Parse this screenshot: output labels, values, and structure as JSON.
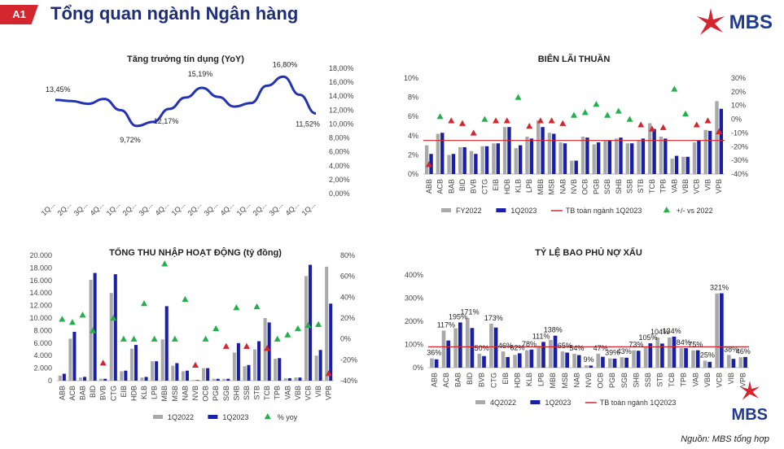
{
  "header": {
    "badge": "A1",
    "title": "Tổng quan ngành Ngân hàng",
    "brand": "MBS"
  },
  "source": "Nguồn: MBS tổng hợp",
  "colors": {
    "navy": "#1a1fa8",
    "gray": "#a9a9a9",
    "red": "#d3262e",
    "green": "#22b04b",
    "line": "#2233b5"
  },
  "chart_data": [
    {
      "type": "line",
      "title": "Tăng trưởng tín dụng (YoY)",
      "x": [
        "1Q...",
        "2Q...",
        "3Q...",
        "4Q...",
        "1Q...",
        "2Q...",
        "3Q...",
        "4Q...",
        "1Q...",
        "2Q...",
        "3Q...",
        "4Q...",
        "1Q...",
        "2Q...",
        "3Q...",
        "4Q...",
        "1Q..."
      ],
      "values": [
        13.45,
        13.3,
        12.9,
        13.6,
        12.0,
        9.72,
        10.3,
        12.17,
        13.8,
        15.19,
        13.9,
        12.5,
        13.0,
        15.5,
        16.8,
        14.2,
        11.52
      ],
      "point_labels": {
        "0": "13,45%",
        "5": "9,72%",
        "7": "12,17%",
        "9": "15,19%",
        "14": "16,80%",
        "16": "11,52%"
      },
      "yticks": [
        "0,00%",
        "2,00%",
        "4,00%",
        "6,00%",
        "8,00%",
        "10,00%",
        "12,00%",
        "14,00%",
        "16,00%",
        "18,00%"
      ],
      "ylim": [
        0,
        18
      ]
    },
    {
      "type": "bar",
      "title": "BIÊN LÃI THUẦN",
      "categories": [
        "ABB",
        "ACB",
        "BAB",
        "BID",
        "BVB",
        "CTG",
        "EIB",
        "HDB",
        "KLB",
        "LPB",
        "MBB",
        "MSB",
        "NAB",
        "NVB",
        "OCB",
        "PGB",
        "SGB",
        "SHB",
        "SSB",
        "STB",
        "TCB",
        "TPB",
        "VAB",
        "VBB",
        "VCB",
        "VIB",
        "VPB"
      ],
      "series": [
        {
          "name": "FY2022",
          "values": [
            3.0,
            4.2,
            2.0,
            2.8,
            2.4,
            2.9,
            3.2,
            4.9,
            2.7,
            3.9,
            5.6,
            4.3,
            3.3,
            1.4,
            3.9,
            3.1,
            3.5,
            3.7,
            3.2,
            3.5,
            5.3,
            3.9,
            1.6,
            1.8,
            3.3,
            4.6,
            7.6
          ]
        },
        {
          "name": "1Q2023",
          "values": [
            2.1,
            4.3,
            2.1,
            2.8,
            2.1,
            2.9,
            3.2,
            4.9,
            3.0,
            3.7,
            4.9,
            4.2,
            3.2,
            1.4,
            3.8,
            3.3,
            3.5,
            3.8,
            3.2,
            3.7,
            4.7,
            3.7,
            1.9,
            1.8,
            3.5,
            4.5,
            6.8
          ]
        },
        {
          "name": "+/- vs 2022",
          "values": [
            -33,
            2,
            -1,
            -3,
            -10,
            0,
            -1,
            -1,
            16,
            -5,
            -1,
            -1,
            -3,
            3,
            5,
            11,
            3,
            6,
            0,
            -4,
            -7,
            -6,
            22,
            4,
            -4,
            -1,
            -9
          ]
        }
      ],
      "avg_line": {
        "name": "TB toàn ngành 1Q2023",
        "value": 3.5
      },
      "yticks_left": [
        "0%",
        "2%",
        "4%",
        "6%",
        "8%",
        "10%"
      ],
      "yticks_right": [
        "-40%",
        "-30%",
        "-20%",
        "-10%",
        "0%",
        "10%",
        "20%",
        "30%"
      ],
      "ylim": [
        0,
        10
      ],
      "y2lim": [
        -40,
        30
      ]
    },
    {
      "type": "bar",
      "title": "TỔNG THU NHẬP HOẠT ĐỘNG (tỷ đồng)",
      "categories": [
        "ABB",
        "ACB",
        "BAB",
        "BID",
        "BVB",
        "CTG",
        "EIB",
        "HDB",
        "KLB",
        "LPB",
        "MBB",
        "MSB",
        "NAB",
        "NVB",
        "OCB",
        "PGB",
        "SGB",
        "SHB",
        "SSB",
        "STB",
        "TCB",
        "TPB",
        "VAB",
        "VBB",
        "VCB",
        "VIB",
        "VPB"
      ],
      "series": [
        {
          "name": "1Q2022",
          "values": [
            800,
            6700,
            500,
            16100,
            300,
            14000,
            1500,
            5100,
            500,
            3100,
            6600,
            2400,
            1500,
            100,
            2000,
            300,
            300,
            4500,
            2300,
            5000,
            10000,
            3500,
            400,
            500,
            16700,
            4000,
            18200
          ]
        },
        {
          "name": "1Q2023",
          "values": [
            1100,
            7800,
            600,
            17200,
            300,
            17000,
            1600,
            5700,
            600,
            3100,
            11900,
            2800,
            1600,
            100,
            2000,
            300,
            300,
            6000,
            2500,
            6300,
            9300,
            3600,
            400,
            500,
            18500,
            4900,
            12300
          ]
        },
        {
          "name": "% yoy",
          "values": [
            19,
            16,
            23,
            8,
            -23,
            20,
            0,
            0,
            34,
            0,
            72,
            0,
            38,
            -25,
            0,
            10,
            -7,
            30,
            -7,
            31,
            -9,
            0,
            4,
            10,
            13,
            14,
            -33
          ]
        }
      ],
      "yticks_left": [
        "0",
        "2.000",
        "4.000",
        "6.000",
        "8.000",
        "10.000",
        "12.000",
        "14.000",
        "16.000",
        "18.000",
        "20.000"
      ],
      "yticks_right": [
        "-40%",
        "-20%",
        "0%",
        "20%",
        "40%",
        "60%",
        "80%"
      ],
      "ylim": [
        0,
        20000
      ],
      "y2lim": [
        -40,
        80
      ]
    },
    {
      "type": "bar",
      "title": "TỶ LỆ BAO PHỦ NỢ XẤU",
      "categories": [
        "ABB",
        "ACB",
        "BAB",
        "BID",
        "BVB",
        "CTG",
        "EIB",
        "HDB",
        "KLB",
        "LPB",
        "MBB",
        "MSB",
        "NAB",
        "NVB",
        "OCB",
        "PGB",
        "SGB",
        "SHB",
        "SSB",
        "STB",
        "TCB",
        "TPB",
        "VAB",
        "VBB",
        "VCB",
        "VIB",
        "VPB"
      ],
      "series": [
        {
          "name": "4Q2022",
          "values": [
            40,
            160,
            170,
            215,
            60,
            190,
            70,
            55,
            75,
            95,
            120,
            70,
            60,
            10,
            60,
            40,
            45,
            75,
            90,
            130,
            130,
            85,
            75,
            30,
            320,
            55,
            45
          ]
        },
        {
          "name": "1Q2023",
          "values": [
            36,
            117,
            195,
            171,
            50,
            173,
            46,
            62,
            78,
            111,
            138,
            65,
            54,
            9,
            47,
            39,
            43,
            73,
            105,
            104,
            134,
            84,
            75,
            25,
            321,
            38,
            46
          ]
        }
      ],
      "value_labels": [
        "36%",
        "117%",
        "195%",
        "171%",
        "50%",
        "173%",
        "46%",
        "62%",
        "78%",
        "111%",
        "138%",
        "65%",
        "54%",
        "9%",
        "47%",
        "39%",
        "43%",
        "73%",
        "105%",
        "104%",
        "134%",
        "84%",
        "75%",
        "25%",
        "321%",
        "38%",
        "46%"
      ],
      "avg_line": {
        "name": "TB toàn ngành 1Q2023",
        "value": 90
      },
      "yticks_left": [
        "0%",
        "100%",
        "200%",
        "300%",
        "400%"
      ],
      "ylim": [
        0,
        400
      ]
    }
  ]
}
